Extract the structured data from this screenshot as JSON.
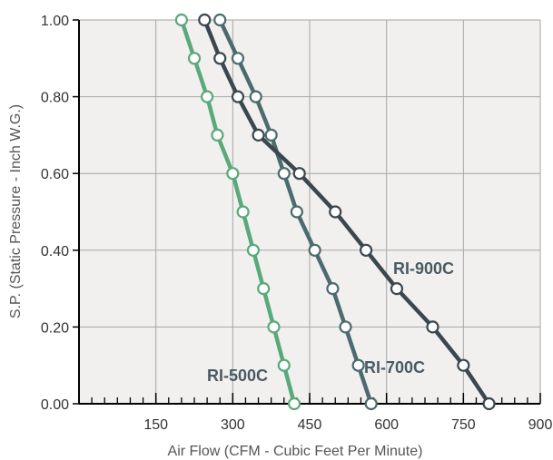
{
  "chart_data": {
    "type": "line",
    "title": "",
    "xlabel": "Air Flow (CFM - Cubic Feet Per Minute)",
    "ylabel": "S.P. (Static Pressure - Inch W.G.)",
    "xlim": [
      0,
      900
    ],
    "ylim": [
      0,
      1.0
    ],
    "x_ticks": [
      150,
      300,
      450,
      600,
      750,
      900
    ],
    "x_tick_labels": [
      "150",
      "300",
      "450",
      "600",
      "750",
      "900"
    ],
    "y_ticks": [
      0,
      0.2,
      0.4,
      0.6,
      0.8,
      1.0
    ],
    "y_tick_labels": [
      "0.00",
      "0.20",
      "0.40",
      "0.60",
      "0.80",
      "1.00"
    ],
    "grid": true,
    "series": [
      {
        "name": "RI-500C",
        "color": "#5aa97a",
        "points": [
          [
            200,
            1.0
          ],
          [
            225,
            0.9
          ],
          [
            250,
            0.8
          ],
          [
            270,
            0.7
          ],
          [
            300,
            0.6
          ],
          [
            320,
            0.5
          ],
          [
            340,
            0.4
          ],
          [
            360,
            0.3
          ],
          [
            380,
            0.2
          ],
          [
            400,
            0.1
          ],
          [
            420,
            0.0
          ]
        ]
      },
      {
        "name": "RI-700C",
        "color": "#4b6b6e",
        "points": [
          [
            275,
            1.0
          ],
          [
            310,
            0.9
          ],
          [
            345,
            0.8
          ],
          [
            375,
            0.7
          ],
          [
            400,
            0.6
          ],
          [
            425,
            0.5
          ],
          [
            460,
            0.4
          ],
          [
            495,
            0.3
          ],
          [
            520,
            0.2
          ],
          [
            545,
            0.1
          ],
          [
            570,
            0.0
          ]
        ]
      },
      {
        "name": "RI-900C",
        "color": "#3b474f",
        "points": [
          [
            245,
            1.0
          ],
          [
            275,
            0.9
          ],
          [
            310,
            0.8
          ],
          [
            350,
            0.7
          ],
          [
            430,
            0.6
          ],
          [
            500,
            0.5
          ],
          [
            560,
            0.4
          ],
          [
            620,
            0.3
          ],
          [
            690,
            0.2
          ],
          [
            750,
            0.1
          ],
          [
            800,
            0.0
          ]
        ]
      }
    ]
  }
}
